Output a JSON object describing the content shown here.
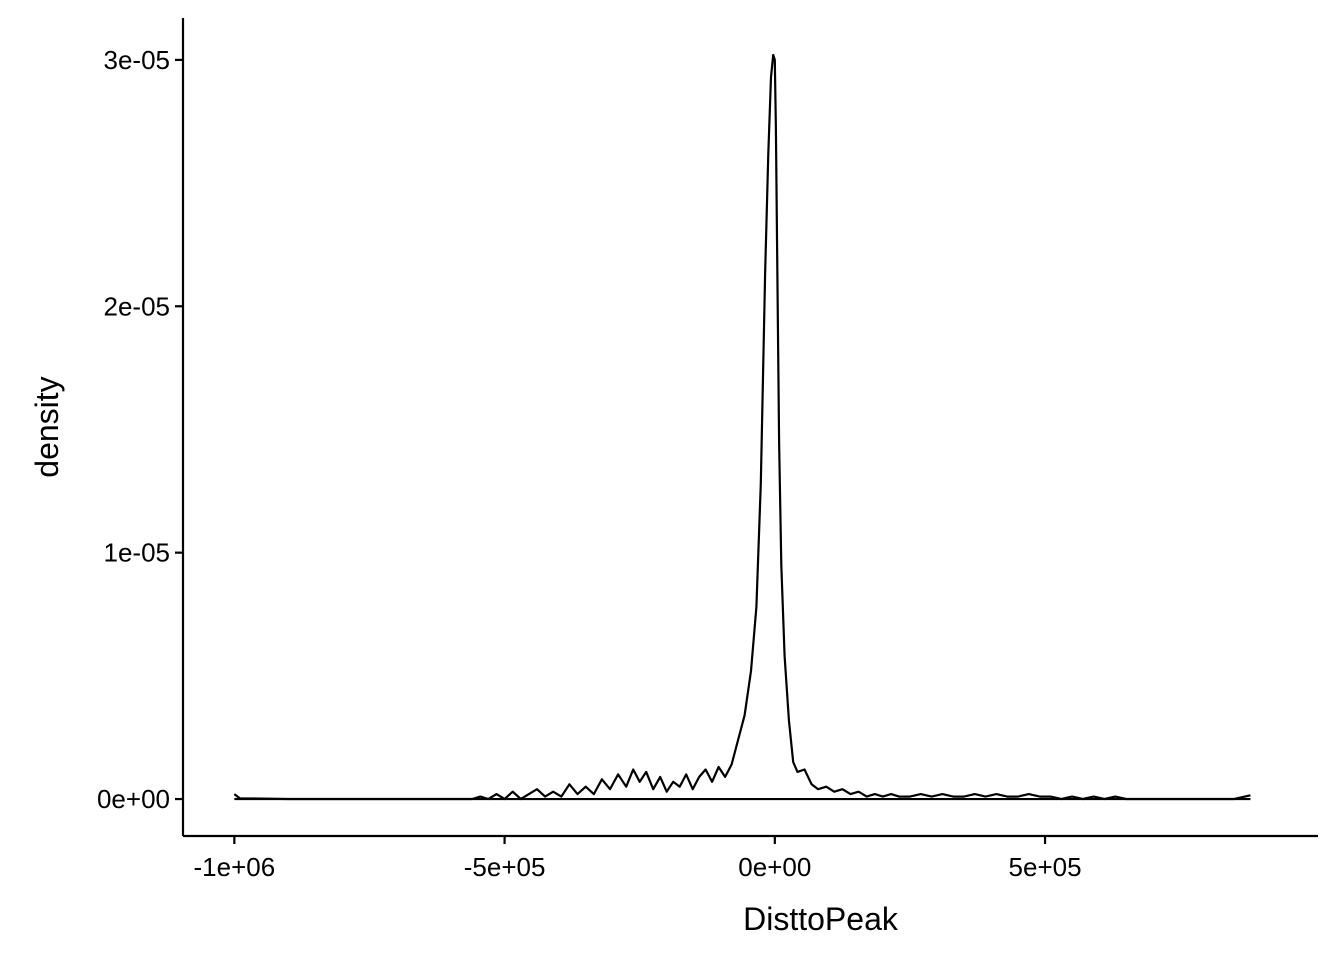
{
  "chart_data": {
    "type": "line",
    "title": "",
    "xlabel": "DisttoPeak",
    "ylabel": "density",
    "xlim": [
      -1095000,
      1005000
    ],
    "ylim": [
      -1.5e-06,
      3.17e-05
    ],
    "x_ticks": [
      {
        "value": -1000000,
        "label": "-1e+06"
      },
      {
        "value": -500000,
        "label": "-5e+05"
      },
      {
        "value": 0,
        "label": "0e+00"
      },
      {
        "value": 500000,
        "label": "5e+05"
      }
    ],
    "y_ticks": [
      {
        "value": 0,
        "label": "0e+00"
      },
      {
        "value": 1e-05,
        "label": "1e-05"
      },
      {
        "value": 2e-05,
        "label": "2e-05"
      },
      {
        "value": 3e-05,
        "label": "3e-05"
      }
    ],
    "grid": false,
    "legend": "none",
    "line_color": "#000000",
    "series": [
      {
        "x": [
          -1000000,
          -990000,
          -900000,
          -800000,
          -700000,
          -600000,
          -560000,
          -545000,
          -530000,
          -515000,
          -500000,
          -485000,
          -470000,
          -455000,
          -440000,
          -425000,
          -410000,
          -395000,
          -380000,
          -365000,
          -350000,
          -335000,
          -320000,
          -305000,
          -290000,
          -275000,
          -262000,
          -250000,
          -238000,
          -225000,
          -212000,
          -200000,
          -188000,
          -176000,
          -164000,
          -152000,
          -140000,
          -128000,
          -116000,
          -104000,
          -92000,
          -80000,
          -68000,
          -56000,
          -44000,
          -34000,
          -26000,
          -18000,
          -12000,
          -7000,
          -3000,
          0,
          2000,
          5000,
          8000,
          12000,
          18000,
          26000,
          34000,
          42000,
          55000,
          68000,
          80000,
          95000,
          110000,
          125000,
          140000,
          155000,
          170000,
          185000,
          200000,
          215000,
          230000,
          250000,
          270000,
          290000,
          310000,
          330000,
          350000,
          370000,
          390000,
          410000,
          430000,
          450000,
          470000,
          490000,
          510000,
          530000,
          550000,
          570000,
          590000,
          610000,
          630000,
          650000,
          700000,
          750000,
          800000,
          850000,
          880000
        ],
        "values": [
          2e-07,
          3e-08,
          0,
          0,
          0,
          0,
          0,
          1e-07,
          0,
          2e-07,
          0,
          3e-07,
          0,
          2e-07,
          4e-07,
          1e-07,
          3e-07,
          1e-07,
          6e-07,
          2e-07,
          5e-07,
          2e-07,
          8e-07,
          4e-07,
          1e-06,
          5e-07,
          1.2e-06,
          7e-07,
          1.1e-06,
          4e-07,
          9e-07,
          3e-07,
          7e-07,
          5e-07,
          1e-06,
          4e-07,
          9e-07,
          1.2e-06,
          7e-07,
          1.3e-06,
          9e-07,
          1.4e-06,
          2.4e-06,
          3.4e-06,
          5.2e-06,
          7.8e-06,
          1.28e-05,
          2.13e-05,
          2.62e-05,
          2.93e-05,
          3.02e-05,
          3e-05,
          2.72e-05,
          2.08e-05,
          1.45e-05,
          9.5e-06,
          5.8e-06,
          3.2e-06,
          1.5e-06,
          1.1e-06,
          1.2e-06,
          6e-07,
          4e-07,
          5e-07,
          3e-07,
          4e-07,
          2e-07,
          3e-07,
          1e-07,
          2e-07,
          1e-07,
          2e-07,
          1e-07,
          1e-07,
          2e-07,
          1e-07,
          2e-07,
          1e-07,
          1e-07,
          2e-07,
          1e-07,
          2e-07,
          1e-07,
          1e-07,
          2e-07,
          1e-07,
          1e-07,
          0,
          1e-07,
          0,
          1e-07,
          0,
          1e-07,
          0,
          0,
          0,
          0,
          0,
          1.5e-07
        ]
      }
    ]
  }
}
